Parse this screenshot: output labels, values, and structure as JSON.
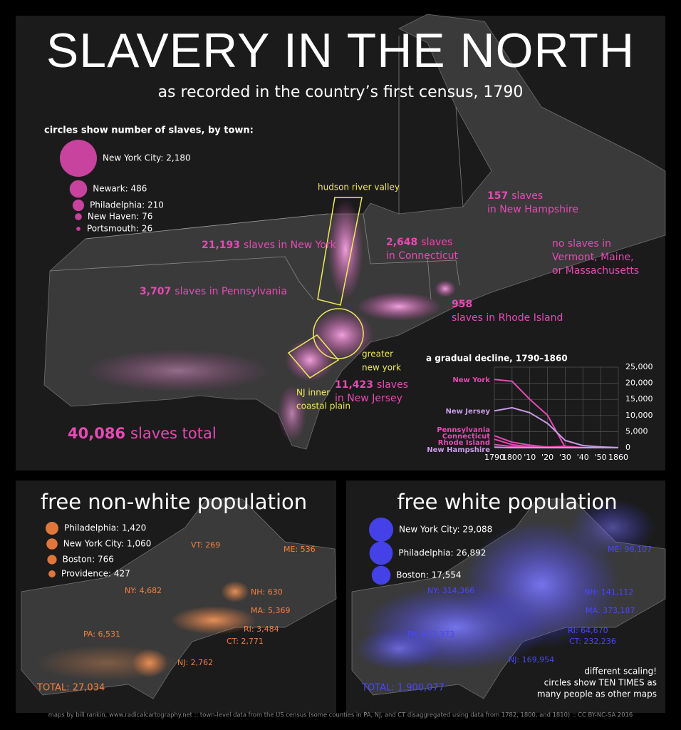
{
  "header": {
    "title": "SLAVERY IN THE NORTH",
    "subtitle": "as recorded in the country’s first census, 1790"
  },
  "slavery_map": {
    "legend_title": "circles show number of slaves, by town:",
    "legend": [
      {
        "label": "New York City: 2,180",
        "value": 2180
      },
      {
        "label": "Newark: 486",
        "value": 486
      },
      {
        "label": "Philadelphia: 210",
        "value": 210
      },
      {
        "label": "New Haven: 76",
        "value": 76
      },
      {
        "label": "Portsmouth: 26",
        "value": 26
      }
    ],
    "annotations": [
      {
        "number": "157",
        "lines": [
          "slaves",
          "in New Hampshire"
        ]
      },
      {
        "number": "21,193",
        "lines": [
          "slaves in New York"
        ]
      },
      {
        "number": "2,648",
        "lines": [
          "slaves",
          "in Connecticut"
        ]
      },
      {
        "lines": [
          "no slaves in",
          "Vermont, Maine,",
          "or Massachusetts"
        ]
      },
      {
        "number": "3,707",
        "lines": [
          "slaves in Pennsylvania"
        ]
      },
      {
        "number": "958",
        "lines": [
          "slaves in Rhode Island"
        ]
      },
      {
        "number": "11,423",
        "lines": [
          "slaves",
          "in New Jersey"
        ]
      }
    ],
    "region_labels": [
      {
        "lines": [
          "hudson river valley"
        ]
      },
      {
        "lines": [
          "greater",
          "new york"
        ]
      },
      {
        "lines": [
          "NJ inner",
          "coastal plain"
        ]
      }
    ],
    "total": {
      "number": "40,086",
      "text": "slaves total"
    }
  },
  "chart_data": {
    "type": "line",
    "title": "a gradual decline, 1790–1860",
    "x": [
      1790,
      1800,
      1810,
      1820,
      1830,
      1840,
      1850,
      1860
    ],
    "xlim": [
      1790,
      1860
    ],
    "xticks": [
      1790,
      1800,
      {
        "value": 1810,
        "label": "'10"
      },
      {
        "value": 1820,
        "label": "'20"
      },
      {
        "value": 1830,
        "label": "'30"
      },
      {
        "value": 1840,
        "label": "'40"
      },
      {
        "value": 1850,
        "label": "'50"
      },
      1860
    ],
    "ylim": [
      0,
      25000
    ],
    "yticks": [
      0,
      {
        "value": 5000,
        "label": "5,000"
      },
      {
        "value": 10000,
        "label": "10,000"
      },
      {
        "value": 15000,
        "label": "15,000"
      },
      {
        "value": 20000,
        "label": "20,000"
      },
      {
        "value": 25000,
        "label": "25,000"
      }
    ],
    "grid": true,
    "series": [
      {
        "name": "New York",
        "color": "#e64ab4",
        "values": [
          21193,
          20613,
          15017,
          10088,
          75,
          4,
          0,
          0
        ]
      },
      {
        "name": "New Jersey",
        "color": "#c89ce6",
        "values": [
          11423,
          12422,
          10851,
          7557,
          2254,
          674,
          236,
          18
        ]
      },
      {
        "name": "Pennsylvania",
        "color": "#e64ab4",
        "values": [
          3707,
          1706,
          795,
          211,
          403,
          64,
          0,
          0
        ]
      },
      {
        "name": "Connecticut",
        "color": "#e64ab4",
        "values": [
          2648,
          951,
          310,
          97,
          25,
          17,
          0,
          0
        ]
      },
      {
        "name": "Rhode Island",
        "color": "#e64ab4",
        "values": [
          958,
          380,
          108,
          48,
          17,
          5,
          0,
          0
        ]
      },
      {
        "name": "New Hampshire",
        "color": "#c89ce6",
        "values": [
          157,
          8,
          0,
          0,
          3,
          1,
          0,
          0
        ]
      }
    ]
  },
  "nonwhite_map": {
    "title": "free non-white population",
    "color": "#f5813f",
    "legend": [
      {
        "label": "Philadelphia: 1,420",
        "value": 1420
      },
      {
        "label": "New York City: 1,060",
        "value": 1060
      },
      {
        "label": "Boston: 766",
        "value": 766
      },
      {
        "label": "Providence: 427",
        "value": 427
      }
    ],
    "labels": [
      "VT: 269",
      "ME: 536",
      "NH: 630",
      "MA: 5,369",
      "NY: 4,682",
      "PA: 6,531",
      "RI: 3,484",
      "CT: 2,771",
      "NJ: 2,762"
    ],
    "total": "TOTAL: 27,034"
  },
  "white_map": {
    "title": "free white population",
    "color": "#4a46ff",
    "legend": [
      {
        "label": "New York City: 29,088",
        "value": 29088
      },
      {
        "label": "Philadelphia: 26,892",
        "value": 26892
      },
      {
        "label": "Boston: 17,554",
        "value": 17554
      }
    ],
    "labels": [
      "ME: 96,107",
      "NH: 141,112",
      "MA: 373,187",
      "NY: 314,366",
      "PA: 423,373",
      "RI: 64,670",
      "CT: 232,236",
      "NJ: 169,954"
    ],
    "total": "TOTAL: 1,900,077",
    "note": [
      "different scaling!",
      "circles show TEN TIMES as",
      "many people as other maps"
    ]
  },
  "footer": "maps by bill rankin, www.radicalcartography.net :: town-level data from the US census (some counties in PA, NJ, and CT disaggregated using data from 1782, 1800, and 1810) :: CC BY-NC-SA 2016"
}
